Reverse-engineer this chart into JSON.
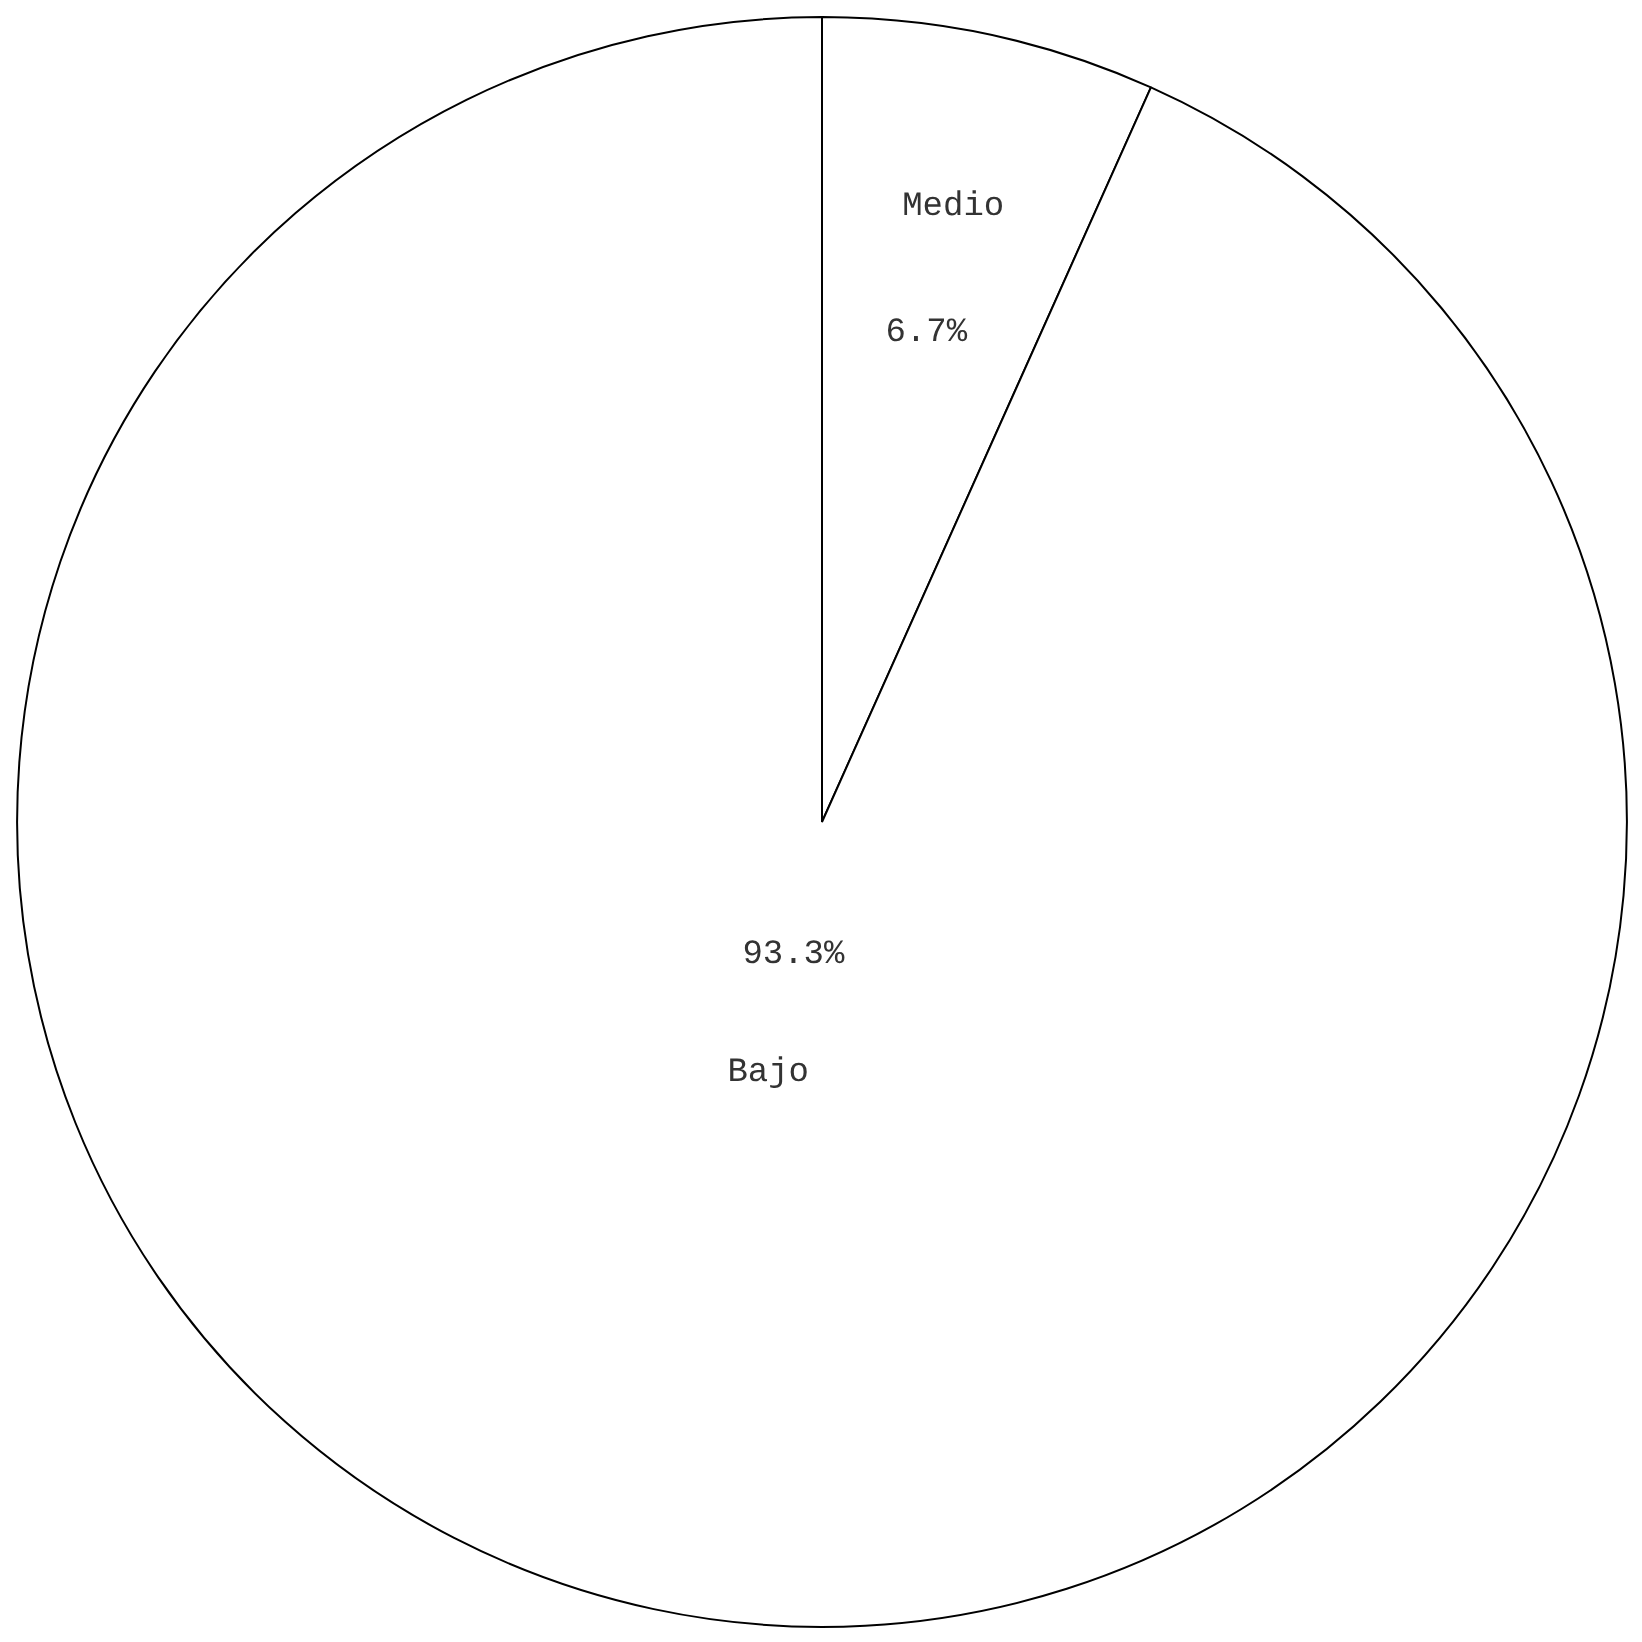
{
  "chart_data": {
    "type": "pie",
    "categories": [
      "Medio",
      "Bajo"
    ],
    "values": [
      6.7,
      93.3
    ],
    "colors": [
      "#ffffff",
      "#ffffff"
    ],
    "value_labels": [
      "6.7%",
      "93.3%"
    ]
  }
}
